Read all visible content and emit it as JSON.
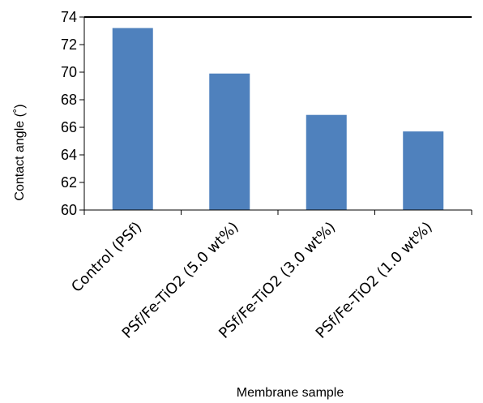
{
  "chart_data": {
    "type": "bar",
    "title": "",
    "xlabel": "Membrane sample",
    "ylabel": "Contact angle (˚)",
    "categories": [
      "Control (PSf)",
      "PSf/Fe-TiO2 (5.0 wt%)",
      "PSf/Fe-TiO2 (3.0 wt%)",
      "PSf/Fe-TiO2 (1.0 wt%)"
    ],
    "values": [
      73.2,
      69.9,
      66.9,
      65.7
    ],
    "ylim": [
      60,
      74
    ],
    "yticks": [
      "60",
      "62",
      "64",
      "66",
      "68",
      "70",
      "72",
      "74"
    ],
    "grid": false,
    "legend": "none",
    "bar_color": "#4f81bd"
  }
}
